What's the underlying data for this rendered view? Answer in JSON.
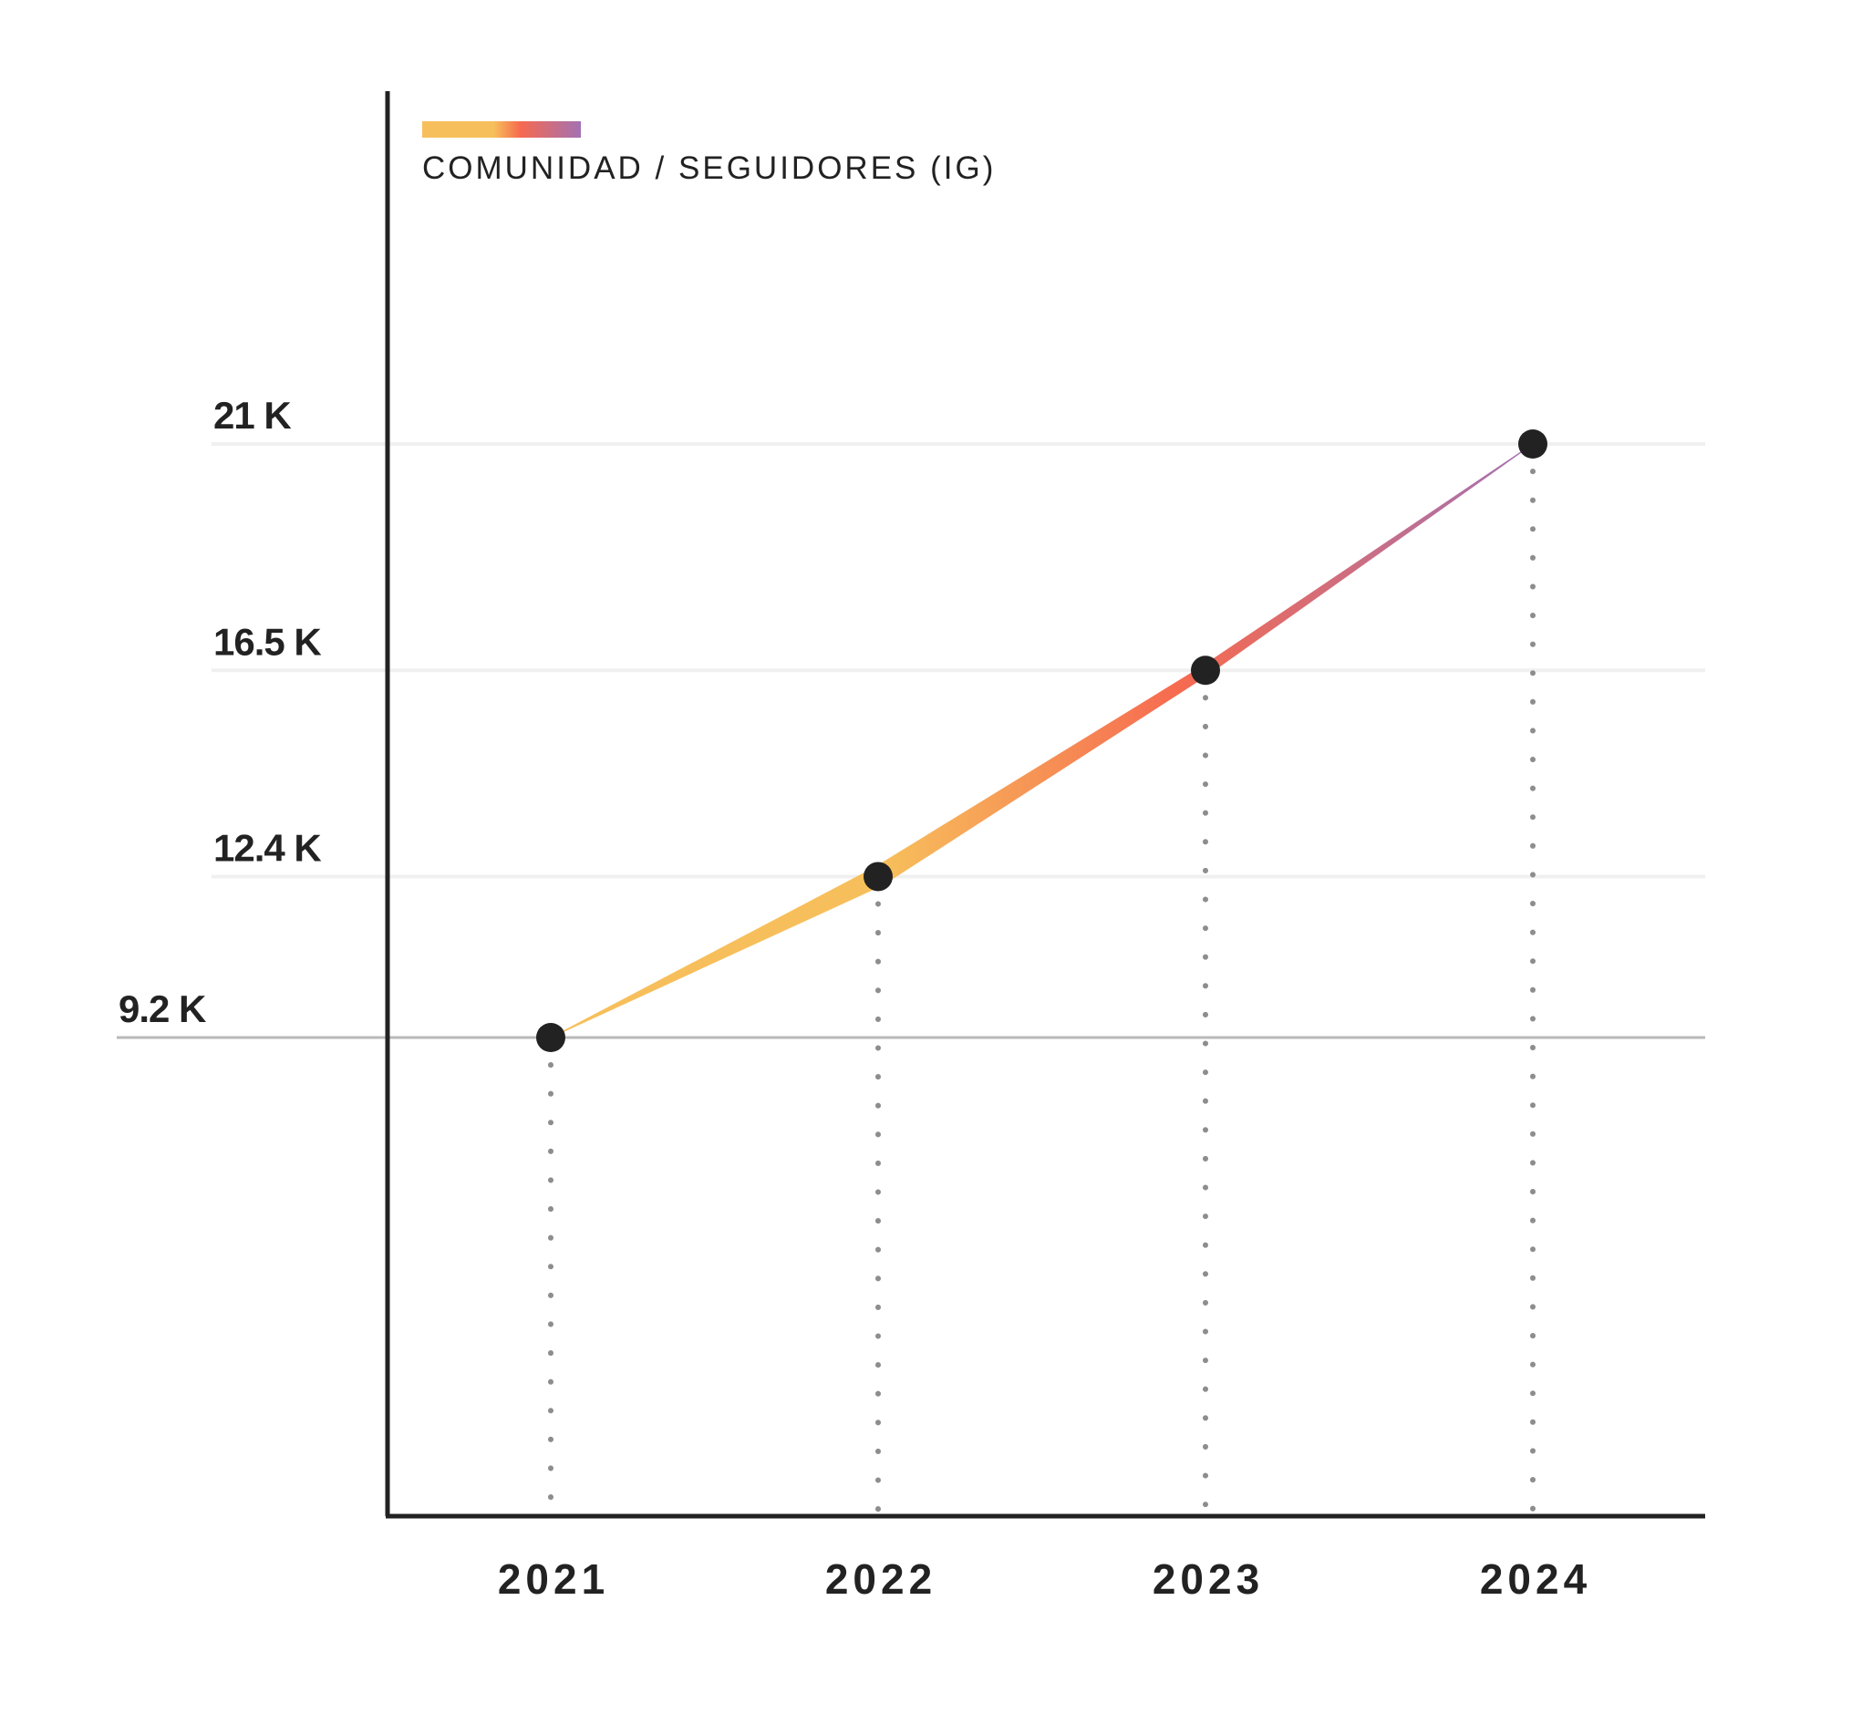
{
  "colors": {
    "axis": "#222222",
    "grid": "#f0f0f0",
    "baseline": "#b9b9b9",
    "point": "#222222",
    "drop_line": "#8d8d8d",
    "gradient": [
      "#f7bf5b",
      "#f66a50",
      "#a371b3"
    ]
  },
  "chart_data": {
    "type": "line",
    "x": [
      "2021",
      "2022",
      "2023",
      "2024"
    ],
    "series": [
      {
        "name": "COMUNIDAD / SEGUIDORES (IG)",
        "values": [
          9200,
          12400,
          16500,
          21000
        ]
      }
    ],
    "y_tick_labels": [
      "9.2 K",
      "12.4 K",
      "16.5 K",
      "21 K"
    ],
    "legend": {
      "label": "COMUNIDAD / SEGUIDORES (IG)",
      "placement": "top-left"
    },
    "grid": true
  }
}
